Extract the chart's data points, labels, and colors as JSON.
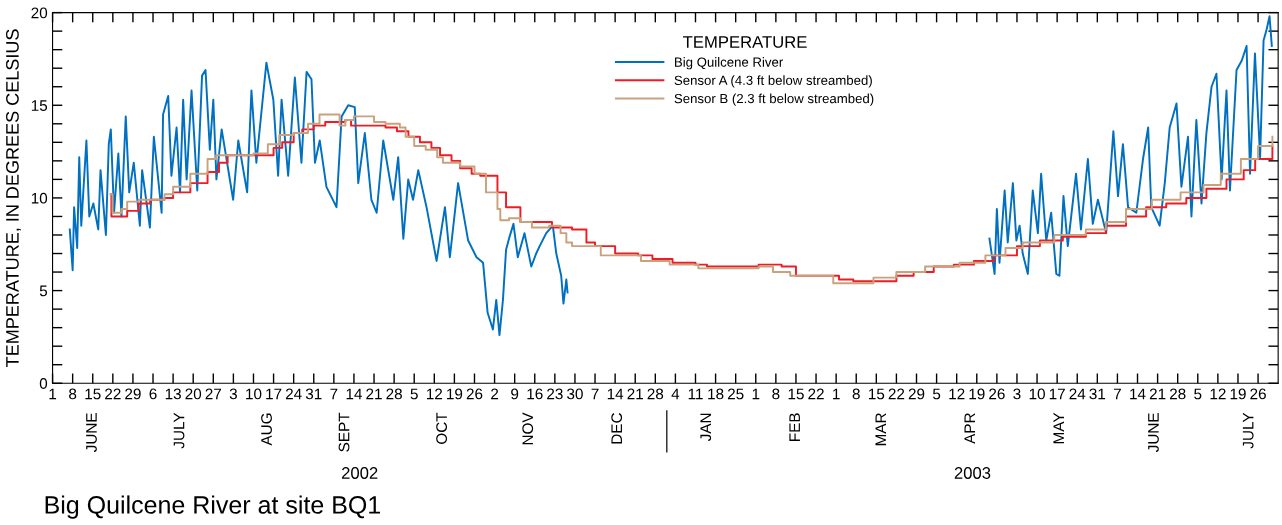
{
  "chart_data": {
    "type": "line",
    "title": "Big Quilcene River at site BQ1",
    "ylabel": "TEMPERATURE, IN DEGREES CELSIUS",
    "legend_title": "TEMPERATURE",
    "legend": "top",
    "xlim": [
      "2002-06-01",
      "2003-08-02"
    ],
    "ylim": [
      0,
      20
    ],
    "annotations": [
      "2002",
      "2003"
    ],
    "yticks": [
      0,
      {
        "value": 1,
        "label": null
      },
      {
        "value": 2,
        "label": null
      },
      {
        "value": 3,
        "label": null
      },
      {
        "value": 4,
        "label": null
      },
      5,
      {
        "value": 6,
        "label": null
      },
      {
        "value": 7,
        "label": null
      },
      {
        "value": 8,
        "label": null
      },
      {
        "value": 9,
        "label": null
      },
      10,
      {
        "value": 11,
        "label": null
      },
      {
        "value": 12,
        "label": null
      },
      {
        "value": 13,
        "label": null
      },
      {
        "value": 14,
        "label": null
      },
      15,
      {
        "value": 16,
        "label": null
      },
      {
        "value": 17,
        "label": null
      },
      {
        "value": 18,
        "label": null
      },
      {
        "value": 19,
        "label": null
      },
      20
    ],
    "xticks": [
      {
        "value": "2002-06-01",
        "label": "1"
      },
      {
        "value": "2002-06-08",
        "label": "8"
      },
      {
        "value": "2002-06-15",
        "label": "15"
      },
      {
        "value": "2002-06-22",
        "label": "22"
      },
      {
        "value": "2002-06-29",
        "label": "29"
      },
      {
        "value": "2002-07-06",
        "label": "6"
      },
      {
        "value": "2002-07-13",
        "label": "13"
      },
      {
        "value": "2002-07-20",
        "label": "20"
      },
      {
        "value": "2002-07-27",
        "label": "27"
      },
      {
        "value": "2002-08-03",
        "label": "3"
      },
      {
        "value": "2002-08-10",
        "label": "10"
      },
      {
        "value": "2002-08-17",
        "label": "17"
      },
      {
        "value": "2002-08-24",
        "label": "24"
      },
      {
        "value": "2002-08-31",
        "label": "31"
      },
      {
        "value": "2002-09-07",
        "label": "7"
      },
      {
        "value": "2002-09-14",
        "label": "14"
      },
      {
        "value": "2002-09-21",
        "label": "21"
      },
      {
        "value": "2002-09-28",
        "label": "28"
      },
      {
        "value": "2002-10-05",
        "label": "5"
      },
      {
        "value": "2002-10-12",
        "label": "12"
      },
      {
        "value": "2002-10-19",
        "label": "19"
      },
      {
        "value": "2002-10-26",
        "label": "26"
      },
      {
        "value": "2002-11-02",
        "label": "2"
      },
      {
        "value": "2002-11-09",
        "label": "9"
      },
      {
        "value": "2002-11-16",
        "label": "16"
      },
      {
        "value": "2002-11-23",
        "label": "23"
      },
      {
        "value": "2002-11-30",
        "label": "30"
      },
      {
        "value": "2002-12-07",
        "label": "7"
      },
      {
        "value": "2002-12-14",
        "label": "14"
      },
      {
        "value": "2002-12-21",
        "label": "21"
      },
      {
        "value": "2002-12-28",
        "label": "28"
      },
      {
        "value": "2003-01-04",
        "label": "4"
      },
      {
        "value": "2003-01-11",
        "label": "11"
      },
      {
        "value": "2003-01-18",
        "label": "18"
      },
      {
        "value": "2003-01-25",
        "label": "25"
      },
      {
        "value": "2003-02-01",
        "label": "1"
      },
      {
        "value": "2003-02-08",
        "label": "8"
      },
      {
        "value": "2003-02-15",
        "label": "15"
      },
      {
        "value": "2003-02-22",
        "label": "22"
      },
      {
        "value": "2003-03-01",
        "label": "1"
      },
      {
        "value": "2003-03-08",
        "label": "8"
      },
      {
        "value": "2003-03-15",
        "label": "15"
      },
      {
        "value": "2003-03-22",
        "label": "22"
      },
      {
        "value": "2003-03-29",
        "label": "29"
      },
      {
        "value": "2003-04-05",
        "label": "5"
      },
      {
        "value": "2003-04-12",
        "label": "12"
      },
      {
        "value": "2003-04-19",
        "label": "19"
      },
      {
        "value": "2003-04-26",
        "label": "26"
      },
      {
        "value": "2003-05-03",
        "label": "3"
      },
      {
        "value": "2003-05-10",
        "label": "10"
      },
      {
        "value": "2003-05-17",
        "label": "17"
      },
      {
        "value": "2003-05-24",
        "label": "24"
      },
      {
        "value": "2003-05-31",
        "label": "31"
      },
      {
        "value": "2003-06-07",
        "label": "7"
      },
      {
        "value": "2003-06-14",
        "label": "14"
      },
      {
        "value": "2003-06-21",
        "label": "21"
      },
      {
        "value": "2003-06-28",
        "label": "28"
      },
      {
        "value": "2003-07-05",
        "label": "5"
      },
      {
        "value": "2003-07-12",
        "label": "12"
      },
      {
        "value": "2003-07-19",
        "label": "19"
      },
      {
        "value": "2003-07-26",
        "label": "26"
      }
    ],
    "x2lim": [
      "2002-06-01",
      "2003-08-02"
    ],
    "x2ticks": [
      {
        "value": "2002-06-15",
        "label": "JUNE"
      },
      {
        "value": "2002-07-15T12:00",
        "label": "JULY"
      },
      {
        "value": "2002-08-15",
        "label": "AUG"
      },
      {
        "value": "2002-09-11",
        "label": "SEPT"
      },
      {
        "value": "2002-10-15",
        "label": "OCT"
      },
      {
        "value": "2002-11-14",
        "label": "NOV"
      },
      {
        "value": "2002-12-15",
        "label": "DEC"
      },
      {
        "value": "2003-01-15",
        "label": "JAN"
      },
      {
        "value": "2003-02-15",
        "label": "FEB"
      },
      {
        "value": "2003-03-17",
        "label": "MAR"
      },
      {
        "value": "2003-04-17",
        "label": "APR"
      },
      {
        "value": "2003-05-18",
        "label": "MAY"
      },
      {
        "value": "2003-06-20",
        "label": "JUNE"
      },
      {
        "value": "2003-07-23",
        "label": "JULY"
      }
    ],
    "series": [
      {
        "name": "Big Quilcene River",
        "color": "#0070c0",
        "x": [
          "2002-06-07",
          "2002-06-08",
          "2002-06-08T12:00",
          "2002-06-09T14:00",
          "2002-06-10T07:00",
          "2002-06-11",
          "2002-06-12T19:00",
          "2002-06-13T19:00",
          "2002-06-15T05:00",
          "2002-06-16T22:00",
          "2002-06-17T17:00",
          "2002-06-19T14:00",
          "2002-06-20T14:00",
          "2002-06-21T07:00",
          "2002-06-22T10:00",
          "2002-06-23T22:00",
          "2002-06-25",
          "2002-06-26T12:00",
          "2002-06-27T17:00",
          "2002-06-29T07:00",
          "2002-07-01T10:00",
          "2002-07-02T05:00",
          "2002-07-04T22:00",
          "2002-07-06T07:00",
          "2002-07-09",
          "2002-07-09T12:00",
          "2002-07-11T07:00",
          "2002-07-12T10:00",
          "2002-07-14T05:00",
          "2002-07-15T10:00",
          "2002-07-16T12:00",
          "2002-07-17T17:00",
          "2002-07-19T10:00",
          "2002-07-21T10:00",
          "2002-07-23T02:00",
          "2002-07-24T07:00",
          "2002-07-25T19:00",
          "2002-07-27",
          "2002-07-28T02:00",
          "2002-07-29T22:00",
          "2002-08-02T22:00",
          "2002-08-04T17:00",
          "2002-08-07T19:00",
          "2002-08-09T07:00",
          "2002-08-11",
          "2002-08-14T12:00",
          "2002-08-16T22:00",
          "2002-08-18T14:00",
          "2002-08-19T19:00",
          "2002-08-22T02:00",
          "2002-08-24T10:00",
          "2002-08-26T17:00",
          "2002-08-28T12:00",
          "2002-08-30T05:00",
          "2002-08-31T10:00",
          "2002-09-02T02:00",
          "2002-09-04T10:00",
          "2002-09-07T22:00",
          "2002-09-09T17:00",
          "2002-09-12",
          "2002-09-14T07:00",
          "2002-09-15T12:00",
          "2002-09-17T19:00",
          "2002-09-20T02:00",
          "2002-09-21T22:00",
          "2002-09-24T05:00",
          "2002-09-27T17:00",
          "2002-09-29T10:00",
          "2002-10-01T05:00",
          "2002-10-02T22:00",
          "2002-10-04T14:00",
          "2002-10-06T10:00",
          "2002-10-09T07:00",
          "2002-10-12T19:00",
          "2002-10-15T17:00",
          "2002-10-17T10:00",
          "2002-10-20T07:00",
          "2002-10-23T19:00",
          "2002-10-26T17:00",
          "2002-10-29",
          "2002-10-30T14:00",
          "2002-11-01T10:00",
          "2002-11-02T14:00",
          "2002-11-03T17:00",
          "2002-11-04T22:00",
          "2002-11-06",
          "2002-11-07T05:00",
          "2002-11-08T14:00",
          "2002-11-10T02:00",
          "2002-11-12T10:00",
          "2002-11-14T19:00",
          "2002-11-16T12:00",
          "2002-11-17T17:00",
          "2002-11-20",
          "2002-11-22T07:00",
          "2002-11-23T12:00",
          "2002-11-25T05:00",
          "2002-11-26",
          "2002-11-27",
          "2002-11-27T10:00",
          "2003-02-06",
          "2003-04-23T10:00",
          "2003-04-25T05:00",
          "2003-04-26",
          "2003-04-26T22:00",
          "2003-04-28T17:00",
          "2003-04-29T19:00",
          "2003-05-01T14:00",
          "2003-05-02T19:00",
          "2003-05-03T22:00",
          "2003-05-05",
          "2003-05-06T19:00",
          "2003-05-08T12:00",
          "2003-05-10T07:00",
          "2003-05-11T10:00",
          "2003-05-13T05:00",
          "2003-05-14T22:00",
          "2003-05-16T17:00",
          "2003-05-17T19:00",
          "2003-05-19T05:00",
          "2003-05-20T17:00",
          "2003-05-23T14:00",
          "2003-05-25T07:00",
          "2003-05-27T17:00",
          "2003-05-29T10:00",
          "2003-05-31T05:00",
          "2003-06-03T02:00",
          "2003-06-05T14:00",
          "2003-06-07T05:00",
          "2003-06-08T22:00",
          "2003-06-10T17:00",
          "2003-06-13T14:00",
          "2003-06-15T22:00",
          "2003-06-17T17:00",
          "2003-06-18T19:00",
          "2003-06-21T17:00",
          "2003-06-23T12:00",
          "2003-06-25T05:00",
          "2003-06-27T14:00",
          "2003-06-29T07:00",
          "2003-07-01T14:00",
          "2003-07-02T19:00",
          "2003-07-04T12:00",
          "2003-07-06T07:00",
          "2003-07-08",
          "2003-07-09T19:00",
          "2003-07-11T12:00",
          "2003-07-13T07:00",
          "2003-07-15",
          "2003-07-16T05:00",
          "2003-07-18T12:00",
          "2003-07-20T07:00",
          "2003-07-22",
          "2003-07-23T05:00",
          "2003-07-24T22:00",
          "2003-07-26T17:00",
          "2003-07-27T22:00",
          "2003-07-29",
          "2003-07-30",
          "2003-07-30T19:00"
        ],
        "values": [
          8.3,
          6.1,
          9.5,
          7.3,
          12.2,
          8.5,
          13.1,
          9.0,
          9.7,
          8.3,
          11.5,
          8.0,
          12.9,
          13.7,
          9.2,
          12.4,
          9.0,
          14.4,
          10.3,
          11.9,
          8.5,
          11.5,
          8.4,
          13.3,
          9.2,
          14.5,
          15.5,
          11.2,
          13.8,
          10.3,
          15.3,
          11.0,
          15.8,
          10.4,
          16.6,
          16.9,
          12.6,
          15.3,
          11.0,
          13.7,
          9.9,
          13.1,
          10.3,
          15.8,
          11.9,
          17.3,
          15.3,
          11.2,
          15.3,
          11.2,
          16.5,
          11.9,
          16.8,
          16.4,
          11.9,
          13.1,
          10.6,
          9.5,
          14.4,
          15.0,
          14.9,
          10.8,
          13.5,
          9.9,
          9.2,
          13.1,
          9.9,
          12.2,
          7.8,
          11.0,
          9.9,
          11.5,
          9.5,
          6.6,
          9.5,
          6.8,
          10.8,
          7.7,
          6.8,
          6.5,
          3.8,
          2.9,
          4.5,
          2.6,
          4.5,
          7.2,
          7.9,
          8.6,
          6.8,
          8.1,
          6.3,
          7.0,
          7.4,
          8.1,
          8.5,
          7.0,
          5.8,
          4.3,
          5.6,
          4.9,
          null,
          7.8,
          5.9,
          9.4,
          6.5,
          10.4,
          7.6,
          10.8,
          7.7,
          8.5,
          7.0,
          5.9,
          10.4,
          8.1,
          11.3,
          7.7,
          9.2,
          5.9,
          5.8,
          10.1,
          7.4,
          11.3,
          8.3,
          12.1,
          8.6,
          9.9,
          8.1,
          13.6,
          10.1,
          12.9,
          9.5,
          9.2,
          12.1,
          13.8,
          9.5,
          8.5,
          10.8,
          13.8,
          15.1,
          10.6,
          13.3,
          9.0,
          14.2,
          9.7,
          13.5,
          16.0,
          16.7,
          11.0,
          15.8,
          10.4,
          16.9,
          17.4,
          18.2,
          11.3,
          17.8,
          12.2,
          18.5,
          19.1,
          19.8,
          18.2
        ]
      },
      {
        "name": "Sensor A (4.3 ft below streambed)",
        "color": "#ee1c25",
        "type": "step",
        "x": [
          "2002-06-21T07:00",
          "2002-06-21T12:00",
          "2002-06-27",
          "2002-07-01",
          "2002-07-05",
          "2002-07-10",
          "2002-07-13",
          "2002-07-19",
          "2002-07-25",
          "2002-07-29",
          "2002-08-01",
          "2002-08-15",
          "2002-08-17",
          "2002-08-20",
          "2002-08-24",
          "2002-08-27",
          "2002-08-31",
          "2002-09-04",
          "2002-09-11",
          "2002-09-13",
          "2002-09-25",
          "2002-09-29",
          "2002-10-03",
          "2002-10-07",
          "2002-10-11",
          "2002-10-14",
          "2002-10-18",
          "2002-10-21",
          "2002-10-25",
          "2002-10-28",
          "2002-11-03",
          "2002-11-06",
          "2002-11-11",
          "2002-11-14",
          "2002-11-22",
          "2002-11-29",
          "2002-12-04",
          "2002-12-07",
          "2002-12-14",
          "2002-12-22",
          "2002-12-27",
          "2003-01-03",
          "2003-01-11",
          "2003-01-15",
          "2003-01-19",
          "2003-01-26",
          "2003-02-02",
          "2003-02-10",
          "2003-02-15",
          "2003-02-22",
          "2003-03-02",
          "2003-03-07",
          "2003-03-17",
          "2003-03-22",
          "2003-03-28",
          "2003-04-04",
          "2003-04-11",
          "2003-04-18",
          "2003-04-25",
          "2003-05-03",
          "2003-05-11",
          "2003-05-19",
          "2003-05-27",
          "2003-06-03",
          "2003-06-10",
          "2003-06-17",
          "2003-06-24",
          "2003-07-01",
          "2003-07-08",
          "2003-07-15",
          "2003-07-21",
          "2003-07-25",
          "2003-07-31"
        ],
        "values": [
          10.2,
          9.0,
          9.3,
          9.7,
          9.9,
          10.0,
          10.3,
          10.8,
          11.4,
          11.9,
          12.3,
          12.3,
          12.7,
          13.0,
          13.5,
          13.7,
          13.9,
          14.1,
          14.2,
          13.9,
          13.8,
          13.6,
          13.3,
          13.0,
          12.7,
          12.3,
          12.0,
          11.6,
          11.3,
          11.2,
          10.3,
          9.5,
          8.7,
          8.7,
          8.4,
          8.3,
          7.6,
          7.4,
          7.0,
          6.9,
          6.7,
          6.5,
          6.4,
          6.3,
          6.3,
          6.3,
          6.4,
          6.3,
          5.8,
          5.8,
          5.6,
          5.5,
          5.5,
          5.8,
          6.0,
          6.3,
          6.4,
          6.6,
          6.9,
          7.4,
          7.7,
          7.9,
          8.1,
          8.5,
          9.0,
          9.5,
          9.7,
          10.0,
          10.5,
          11.0,
          11.5,
          12.1,
          12.8
        ]
      },
      {
        "name": "Sensor B (2.3 ft below streambed)",
        "color": "#c9a17c",
        "type": "step",
        "x": [
          "2002-06-21T07:00",
          "2002-06-21T22:00",
          "2002-06-25",
          "2002-06-27",
          "2002-07-01",
          "2002-07-10",
          "2002-07-13",
          "2002-07-19",
          "2002-07-25",
          "2002-07-28",
          "2002-08-10",
          "2002-08-15",
          "2002-08-19",
          "2002-08-24",
          "2002-08-29",
          "2002-09-02",
          "2002-09-05",
          "2002-09-09",
          "2002-09-11",
          "2002-09-14",
          "2002-09-18",
          "2002-09-21",
          "2002-09-25",
          "2002-09-30",
          "2002-10-02",
          "2002-10-05",
          "2002-10-09",
          "2002-10-13",
          "2002-10-15",
          "2002-10-21",
          "2002-10-26",
          "2002-10-30",
          "2002-11-03",
          "2002-11-04",
          "2002-11-07",
          "2002-11-11",
          "2002-11-15",
          "2002-11-21",
          "2002-11-25",
          "2002-11-27",
          "2002-11-29",
          "2002-12-06",
          "2002-12-09",
          "2002-12-16",
          "2002-12-23",
          "2003-01-02",
          "2003-01-12",
          "2003-01-25",
          "2003-02-02",
          "2003-02-07",
          "2003-02-13",
          "2003-02-22",
          "2003-02-28",
          "2003-03-08",
          "2003-03-14",
          "2003-03-22",
          "2003-04-01",
          "2003-04-13",
          "2003-04-22",
          "2003-04-29",
          "2003-05-05",
          "2003-05-16",
          "2003-05-27",
          "2003-06-03",
          "2003-06-10",
          "2003-06-19",
          "2003-06-29",
          "2003-07-07",
          "2003-07-13",
          "2003-07-20",
          "2003-07-26",
          "2003-07-31"
        ],
        "values": [
          10.2,
          9.2,
          9.4,
          9.8,
          9.9,
          10.2,
          10.6,
          11.3,
          12.1,
          12.3,
          12.4,
          12.9,
          13.4,
          13.5,
          14.0,
          14.5,
          14.5,
          13.9,
          14.2,
          14.4,
          14.4,
          14.1,
          14.0,
          13.8,
          13.3,
          12.8,
          12.6,
          12.2,
          11.9,
          11.7,
          11.3,
          10.3,
          9.4,
          8.8,
          8.9,
          8.7,
          8.4,
          8.5,
          8.1,
          7.6,
          7.4,
          7.4,
          6.9,
          6.9,
          6.6,
          6.4,
          6.2,
          6.2,
          6.3,
          6.0,
          5.8,
          5.8,
          5.4,
          5.4,
          5.7,
          6.0,
          6.3,
          6.5,
          6.9,
          7.3,
          7.6,
          8.0,
          8.3,
          8.7,
          9.4,
          9.9,
          10.3,
          10.7,
          11.3,
          12.1,
          12.8,
          13.3
        ]
      }
    ]
  }
}
